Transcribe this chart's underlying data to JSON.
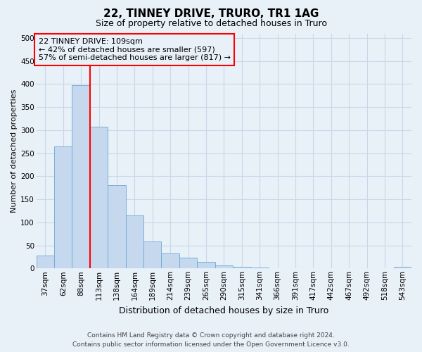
{
  "title": "22, TINNEY DRIVE, TRURO, TR1 1AG",
  "subtitle": "Size of property relative to detached houses in Truro",
  "xlabel": "Distribution of detached houses by size in Truro",
  "ylabel": "Number of detached properties",
  "footer_line1": "Contains HM Land Registry data © Crown copyright and database right 2024.",
  "footer_line2": "Contains public sector information licensed under the Open Government Licence v3.0.",
  "annotation_line1": "22 TINNEY DRIVE: 109sqm",
  "annotation_line2": "← 42% of detached houses are smaller (597)",
  "annotation_line3": "57% of semi-detached houses are larger (817) →",
  "bar_labels": [
    "37sqm",
    "62sqm",
    "88sqm",
    "113sqm",
    "138sqm",
    "164sqm",
    "189sqm",
    "214sqm",
    "239sqm",
    "265sqm",
    "290sqm",
    "315sqm",
    "341sqm",
    "366sqm",
    "391sqm",
    "417sqm",
    "442sqm",
    "467sqm",
    "492sqm",
    "518sqm",
    "543sqm"
  ],
  "bar_values": [
    28,
    264,
    397,
    307,
    181,
    115,
    58,
    32,
    23,
    14,
    7,
    3,
    2,
    1,
    1,
    1,
    0,
    0,
    0,
    0,
    4
  ],
  "bar_color": "#c5d8ee",
  "bar_edge_color": "#6aaad4",
  "grid_color": "#c8d8e8",
  "background_color": "#e8f0f8",
  "red_line_bar_index": 3,
  "ylim": [
    0,
    510
  ],
  "yticks": [
    0,
    50,
    100,
    150,
    200,
    250,
    300,
    350,
    400,
    450,
    500
  ],
  "title_fontsize": 11,
  "subtitle_fontsize": 9,
  "ylabel_fontsize": 8,
  "xlabel_fontsize": 9,
  "tick_fontsize": 7.5,
  "annotation_fontsize": 8,
  "footer_fontsize": 6.5
}
